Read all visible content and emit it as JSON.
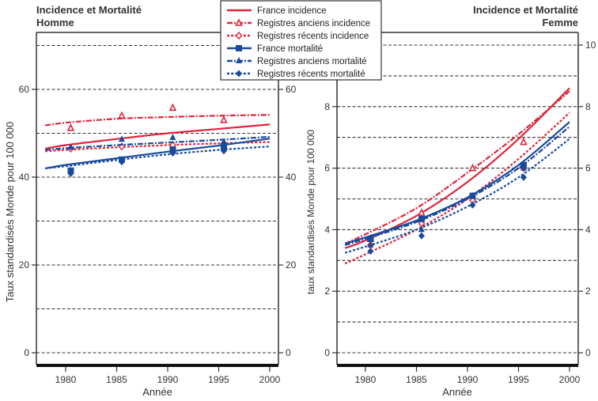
{
  "chart_data": [
    {
      "type": "line",
      "title": "Incidence et Mortalité",
      "subtitle": "Homme",
      "xlabel": "Année",
      "ylabel": "Taux standardisés Monde pour 100 000",
      "xlim": [
        1977,
        2001
      ],
      "ylim": [
        0,
        70
      ],
      "xticks": [
        1980,
        1985,
        1990,
        1995,
        2000
      ],
      "yticks_labeled": [
        0,
        20,
        40,
        60
      ],
      "grid": "horizontal dashed every 10",
      "series": [
        {
          "name": "France incidence",
          "color": "#e0243c",
          "style": "solid",
          "marker": "none",
          "x": [
            1978,
            1980,
            1985,
            1990,
            1995,
            2000
          ],
          "y": [
            46.5,
            47.3,
            48.7,
            50.0,
            51.0,
            52.0
          ]
        },
        {
          "name": "Registres anciens incidence",
          "color": "#e0243c",
          "style": "dashdot",
          "marker": "triangle-open",
          "x": [
            1978,
            1980,
            1985,
            1990,
            1995,
            2000
          ],
          "y": [
            51.8,
            52.4,
            53.3,
            53.7,
            54.0,
            54.2
          ],
          "points": [
            [
              1980.5,
              51.2
            ],
            [
              1985.5,
              54.0
            ],
            [
              1990.5,
              55.8
            ],
            [
              1995.5,
              53.0
            ]
          ]
        },
        {
          "name": "Registres récents incidence",
          "color": "#e0243c",
          "style": "dotted",
          "marker": "diamond-open",
          "x": [
            1978,
            1980,
            1985,
            1990,
            1995,
            2000
          ],
          "y": [
            45.9,
            46.2,
            46.8,
            47.3,
            47.7,
            48.0
          ],
          "points": [
            [
              1980.5,
              46.5
            ],
            [
              1985.5,
              47.0
            ],
            [
              1990.5,
              47.3
            ],
            [
              1995.5,
              47.7
            ]
          ]
        },
        {
          "name": "France mortalité",
          "color": "#1a4a9c",
          "style": "solid",
          "marker": "square",
          "x": [
            1978,
            1980,
            1985,
            1990,
            1995,
            2000
          ],
          "y": [
            42.0,
            42.8,
            44.3,
            45.8,
            47.2,
            48.8
          ],
          "points": [
            [
              1980.5,
              41.5
            ],
            [
              1985.5,
              44.0
            ],
            [
              1990.5,
              46.3
            ],
            [
              1995.5,
              46.8
            ]
          ]
        },
        {
          "name": "Registres anciens mortalité",
          "color": "#1a4a9c",
          "style": "dashdot",
          "marker": "triangle",
          "x": [
            1978,
            1980,
            1985,
            1990,
            1995,
            2000
          ],
          "y": [
            46.2,
            46.6,
            47.3,
            47.9,
            48.5,
            49.2
          ],
          "points": [
            [
              1980.5,
              46.8
            ],
            [
              1985.5,
              48.6
            ],
            [
              1990.5,
              49.0
            ],
            [
              1995.5,
              48.0
            ]
          ]
        },
        {
          "name": "Registres récents mortalité",
          "color": "#1a4a9c",
          "style": "dotted",
          "marker": "diamond",
          "x": [
            1978,
            1980,
            1985,
            1990,
            1995,
            2000
          ],
          "y": [
            42.0,
            42.5,
            43.9,
            45.2,
            46.2,
            47.0
          ],
          "points": [
            [
              1980.5,
              40.8
            ],
            [
              1985.5,
              43.5
            ],
            [
              1990.5,
              45.5
            ],
            [
              1995.5,
              46.0
            ]
          ]
        }
      ]
    },
    {
      "type": "line",
      "title": "Incidence et Mortalité",
      "subtitle": "Femme",
      "xlabel": "Année",
      "ylabel": "taux standardisés Monde pour 100 000",
      "xlim": [
        1977,
        2001
      ],
      "ylim": [
        0,
        10
      ],
      "xticks": [
        1980,
        1985,
        1990,
        1995,
        2000
      ],
      "yticks_labeled": [
        0,
        2,
        4,
        6,
        8,
        10
      ],
      "grid": "horizontal dashed every 1",
      "series": [
        {
          "name": "France incidence",
          "color": "#e0243c",
          "style": "solid",
          "marker": "none",
          "x": [
            1978,
            1980,
            1985,
            1990,
            1995,
            2000
          ],
          "y": [
            3.4,
            3.65,
            4.45,
            5.55,
            6.95,
            8.6
          ]
        },
        {
          "name": "Registres anciens incidence",
          "color": "#e0243c",
          "style": "dashdot",
          "marker": "triangle-open",
          "x": [
            1978,
            1980,
            1985,
            1990,
            1995,
            2000
          ],
          "y": [
            3.55,
            3.85,
            4.7,
            5.85,
            7.1,
            8.5
          ],
          "points": [
            [
              1980.5,
              3.7
            ],
            [
              1985.5,
              4.55
            ],
            [
              1990.5,
              6.0
            ],
            [
              1995.5,
              6.85
            ]
          ]
        },
        {
          "name": "Registres récents incidence",
          "color": "#e0243c",
          "style": "dotted",
          "marker": "diamond-open",
          "x": [
            1978,
            1980,
            1985,
            1990,
            1995,
            2000
          ],
          "y": [
            2.9,
            3.2,
            4.0,
            5.0,
            6.3,
            7.8
          ],
          "points": [
            [
              1980.5,
              3.5
            ],
            [
              1985.5,
              4.2
            ],
            [
              1990.5,
              4.95
            ],
            [
              1995.5,
              6.0
            ]
          ]
        },
        {
          "name": "France mortalité",
          "color": "#1a4a9c",
          "style": "solid",
          "marker": "square",
          "x": [
            1978,
            1980,
            1985,
            1990,
            1995,
            2000
          ],
          "y": [
            3.55,
            3.75,
            4.3,
            5.05,
            6.1,
            7.5
          ],
          "points": [
            [
              1980.5,
              3.7
            ],
            [
              1985.5,
              4.35
            ],
            [
              1990.5,
              5.1
            ],
            [
              1995.5,
              6.1
            ]
          ]
        },
        {
          "name": "Registres anciens mortalité",
          "color": "#1a4a9c",
          "style": "dashdot",
          "marker": "triangle",
          "x": [
            1978,
            1980,
            1985,
            1990,
            1995,
            2000
          ],
          "y": [
            3.5,
            3.7,
            4.25,
            5.0,
            6.0,
            7.35
          ],
          "points": [
            [
              1980.5,
              3.5
            ],
            [
              1985.5,
              4.0
            ],
            [
              1990.5,
              5.1
            ],
            [
              1995.5,
              6.0
            ]
          ]
        },
        {
          "name": "Registres récents mortalité",
          "color": "#1a4a9c",
          "style": "dotted",
          "marker": "diamond",
          "x": [
            1978,
            1980,
            1985,
            1990,
            1995,
            2000
          ],
          "y": [
            3.25,
            3.45,
            4.0,
            4.75,
            5.7,
            6.95
          ],
          "points": [
            [
              1980.5,
              3.3
            ],
            [
              1985.5,
              3.8
            ],
            [
              1990.5,
              4.8
            ],
            [
              1995.5,
              5.7
            ]
          ]
        }
      ]
    }
  ],
  "legend": {
    "placement": "top-center",
    "items": [
      "France incidence",
      "Registres anciens incidence",
      "Registres récents incidence",
      "France mortalité",
      "Registres anciens mortalité",
      "Registres récents mortalité"
    ]
  }
}
